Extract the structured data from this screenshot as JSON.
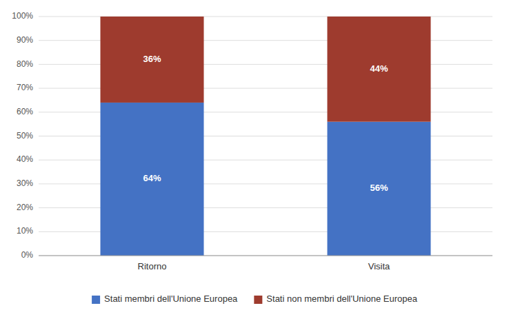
{
  "chart_data": {
    "type": "bar",
    "stacked": true,
    "categories": [
      "Ritorno",
      "Visita"
    ],
    "series": [
      {
        "name": "Stati membri dell'Unione Europea",
        "color": "#4472C4",
        "values": [
          64,
          56
        ],
        "value_labels": [
          "64%",
          "56%"
        ]
      },
      {
        "name": "Stati non membri dell'Unione Europea",
        "color": "#9E3B2E",
        "values": [
          36,
          44
        ],
        "value_labels": [
          "36%",
          "44%"
        ]
      }
    ],
    "ylim": [
      0,
      100
    ],
    "yticks": [
      {
        "value": 0,
        "label": "0%"
      },
      {
        "value": 10,
        "label": "10%"
      },
      {
        "value": 20,
        "label": "20%"
      },
      {
        "value": 30,
        "label": "30%"
      },
      {
        "value": 40,
        "label": "40%"
      },
      {
        "value": 50,
        "label": "50%"
      },
      {
        "value": 60,
        "label": "60%"
      },
      {
        "value": 70,
        "label": "70%"
      },
      {
        "value": 80,
        "label": "80%"
      },
      {
        "value": 90,
        "label": "90%"
      },
      {
        "value": 100,
        "label": "100%"
      }
    ],
    "grid": true,
    "legend": "bottom",
    "data_labels": true
  }
}
